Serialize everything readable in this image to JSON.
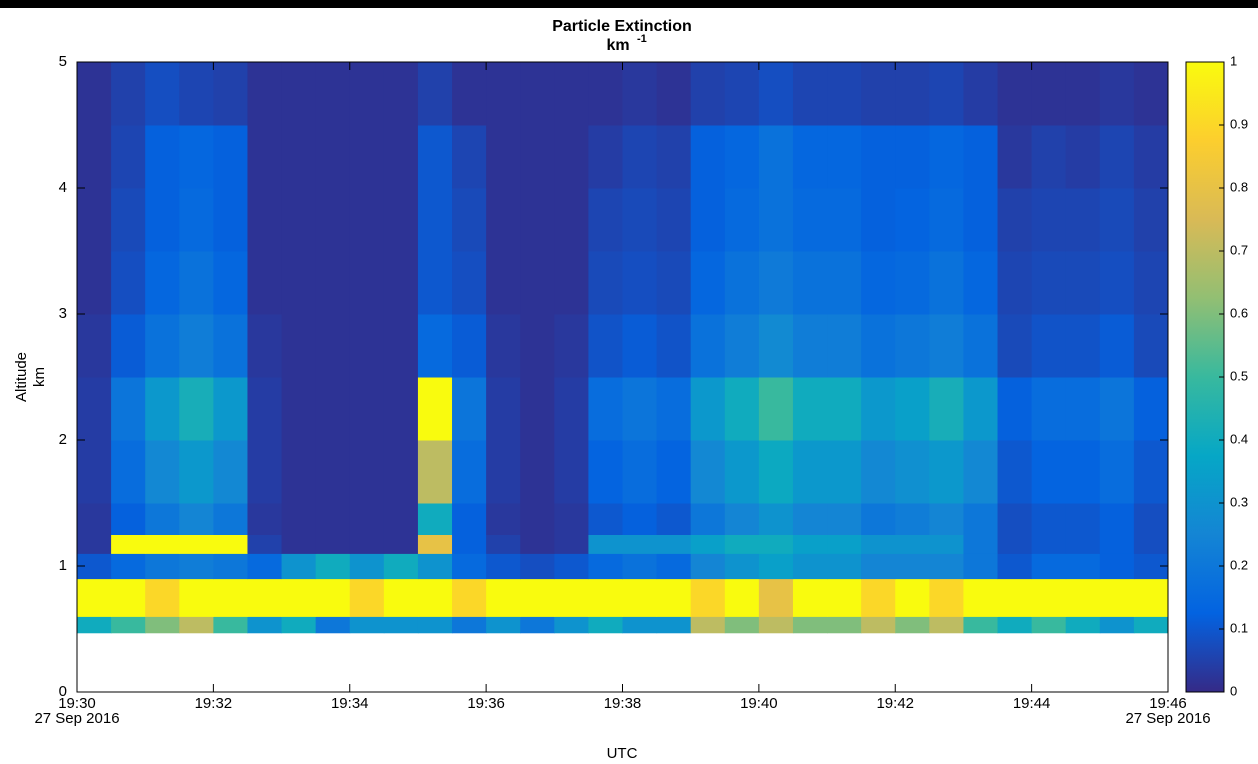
{
  "chart_data": {
    "type": "heatmap",
    "title": "Particle Extinction",
    "subtitle": "km",
    "subtitle_superscript": "-1",
    "x_label": "UTC",
    "y_label": [
      "Altitude",
      "km"
    ],
    "date_label": "27 Sep 2016",
    "xlim": [
      30,
      46
    ],
    "xticks": [
      {
        "value": 30,
        "label": "19:30"
      },
      {
        "value": 32,
        "label": "19:32"
      },
      {
        "value": 34,
        "label": "19:34"
      },
      {
        "value": 36,
        "label": "19:36"
      },
      {
        "value": 38,
        "label": "19:38"
      },
      {
        "value": 40,
        "label": "19:40"
      },
      {
        "value": 42,
        "label": "19:42"
      },
      {
        "value": 44,
        "label": "19:44"
      },
      {
        "value": 46,
        "label": "19:46"
      }
    ],
    "ylim": [
      0,
      5
    ],
    "yticks": [
      0,
      1,
      2,
      3,
      4,
      5
    ],
    "clim": [
      0,
      1
    ],
    "cticks": [
      0,
      0.1,
      0.2,
      0.3,
      0.4,
      0.5,
      0.6,
      0.7,
      0.8,
      0.9,
      1
    ],
    "colormap": [
      "#352a87",
      "#0363e1",
      "#1485d4",
      "#06a7c6",
      "#38b99e",
      "#92bf73",
      "#d9ba56",
      "#fcce2e",
      "#f9fb0e"
    ],
    "x_edges": [
      30,
      30.5,
      31,
      31.5,
      32,
      32.5,
      33,
      33.5,
      34,
      34.5,
      35,
      35.5,
      36,
      36.5,
      37,
      37.5,
      38,
      38.5,
      39,
      39.5,
      40,
      40.5,
      41,
      41.5,
      42,
      42.5,
      43,
      43.5,
      44,
      44.5,
      45,
      45.5,
      46
    ],
    "y_edges": [
      0.47,
      0.6,
      0.9,
      1.1,
      1.25,
      1.5,
      2,
      2.5,
      3,
      3.5,
      4,
      4.5,
      5
    ],
    "z": [
      [
        0.4,
        0.5,
        0.6,
        0.7,
        0.5,
        0.3,
        0.4,
        0.2,
        0.3,
        0.3,
        0.3,
        0.2,
        0.3,
        0.2,
        0.3,
        0.4,
        0.3,
        0.3,
        0.7,
        0.6,
        0.7,
        0.6,
        0.6,
        0.7,
        0.6,
        0.7,
        0.5,
        0.4,
        0.5,
        0.4,
        0.3,
        0.4
      ],
      [
        1,
        1,
        0.9,
        1,
        1,
        1,
        1,
        1,
        0.9,
        1,
        1,
        0.9,
        1,
        1,
        1,
        1,
        1,
        1,
        0.9,
        1,
        0.8,
        1,
        1,
        0.9,
        1,
        0.9,
        1,
        1,
        1,
        1,
        1,
        1
      ],
      [
        0.1,
        0.15,
        0.2,
        0.22,
        0.2,
        0.15,
        0.3,
        0.4,
        0.3,
        0.4,
        0.3,
        0.15,
        0.1,
        0.08,
        0.1,
        0.15,
        0.18,
        0.15,
        0.25,
        0.3,
        0.35,
        0.3,
        0.3,
        0.25,
        0.25,
        0.25,
        0.2,
        0.1,
        0.15,
        0.15,
        0.12,
        0.1
      ],
      [
        0.03,
        1,
        1,
        1,
        1,
        0.05,
        0.02,
        0.02,
        0.02,
        0.02,
        0.8,
        0.12,
        0.05,
        0.02,
        0.03,
        0.3,
        0.3,
        0.3,
        0.35,
        0.4,
        0.4,
        0.35,
        0.35,
        0.3,
        0.3,
        0.3,
        0.2,
        0.08,
        0.1,
        0.1,
        0.12,
        0.08
      ],
      [
        0.03,
        0.12,
        0.2,
        0.25,
        0.2,
        0.03,
        0.02,
        0.02,
        0.02,
        0.02,
        0.4,
        0.12,
        0.03,
        0.02,
        0.03,
        0.1,
        0.12,
        0.1,
        0.2,
        0.25,
        0.3,
        0.25,
        0.25,
        0.2,
        0.22,
        0.25,
        0.2,
        0.08,
        0.1,
        0.1,
        0.12,
        0.08
      ],
      [
        0.04,
        0.16,
        0.26,
        0.32,
        0.26,
        0.04,
        0.02,
        0.02,
        0.02,
        0.02,
        0.7,
        0.16,
        0.04,
        0.02,
        0.04,
        0.13,
        0.16,
        0.13,
        0.26,
        0.32,
        0.39,
        0.32,
        0.32,
        0.26,
        0.29,
        0.32,
        0.26,
        0.1,
        0.13,
        0.13,
        0.16,
        0.1
      ],
      [
        0.04,
        0.19,
        0.32,
        0.42,
        0.32,
        0.04,
        0.02,
        0.02,
        0.02,
        0.02,
        1,
        0.19,
        0.04,
        0.02,
        0.04,
        0.16,
        0.19,
        0.16,
        0.32,
        0.4,
        0.5,
        0.4,
        0.4,
        0.32,
        0.35,
        0.42,
        0.32,
        0.12,
        0.16,
        0.16,
        0.19,
        0.12
      ],
      [
        0.03,
        0.11,
        0.18,
        0.22,
        0.18,
        0.03,
        0.02,
        0.02,
        0.02,
        0.02,
        0.15,
        0.11,
        0.03,
        0.02,
        0.03,
        0.09,
        0.11,
        0.09,
        0.18,
        0.22,
        0.27,
        0.22,
        0.22,
        0.18,
        0.2,
        0.22,
        0.18,
        0.07,
        0.09,
        0.09,
        0.11,
        0.07
      ],
      [
        0.02,
        0.08,
        0.14,
        0.18,
        0.14,
        0.02,
        0.02,
        0.02,
        0.02,
        0.02,
        0.1,
        0.08,
        0.02,
        0.02,
        0.02,
        0.07,
        0.08,
        0.07,
        0.14,
        0.18,
        0.21,
        0.18,
        0.18,
        0.14,
        0.15,
        0.18,
        0.14,
        0.06,
        0.07,
        0.07,
        0.08,
        0.06
      ],
      [
        0.02,
        0.07,
        0.12,
        0.15,
        0.12,
        0.02,
        0.02,
        0.02,
        0.02,
        0.02,
        0.1,
        0.07,
        0.02,
        0.02,
        0.02,
        0.06,
        0.07,
        0.06,
        0.12,
        0.15,
        0.18,
        0.15,
        0.15,
        0.12,
        0.13,
        0.15,
        0.12,
        0.05,
        0.06,
        0.06,
        0.07,
        0.05
      ],
      [
        0.02,
        0.06,
        0.12,
        0.14,
        0.12,
        0.02,
        0.02,
        0.02,
        0.02,
        0.02,
        0.1,
        0.06,
        0.02,
        0.02,
        0.02,
        0.04,
        0.06,
        0.05,
        0.12,
        0.14,
        0.18,
        0.14,
        0.14,
        0.12,
        0.12,
        0.14,
        0.12,
        0.03,
        0.05,
        0.04,
        0.06,
        0.04
      ],
      [
        0.02,
        0.05,
        0.08,
        0.06,
        0.05,
        0.02,
        0.02,
        0.02,
        0.02,
        0.02,
        0.05,
        0.02,
        0.02,
        0.02,
        0.02,
        0.02,
        0.03,
        0.02,
        0.05,
        0.06,
        0.08,
        0.06,
        0.06,
        0.05,
        0.05,
        0.06,
        0.04,
        0.02,
        0.02,
        0.02,
        0.03,
        0.02
      ]
    ]
  }
}
